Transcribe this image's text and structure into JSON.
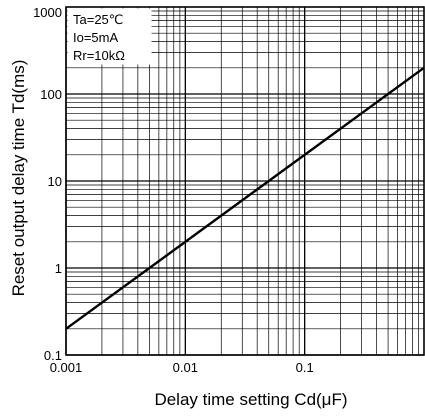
{
  "chart_data": {
    "type": "line",
    "xlabel": "Delay time setting Cd(μF)",
    "ylabel": "Reset output delay time Td(ms)",
    "xscale": "log",
    "yscale": "log",
    "xlim": [
      0.001,
      1
    ],
    "ylim": [
      0.1,
      1000
    ],
    "x_ticks": [
      {
        "value": 0.001,
        "label": "0.001"
      },
      {
        "value": 0.01,
        "label": "0.01"
      },
      {
        "value": 0.1,
        "label": "0.1"
      }
    ],
    "y_ticks": [
      {
        "value": 0.1,
        "label": "0.1"
      },
      {
        "value": 1,
        "label": "1"
      },
      {
        "value": 10,
        "label": "10"
      },
      {
        "value": 100,
        "label": "100"
      },
      {
        "value": 1000,
        "label": "1000"
      }
    ],
    "grid": true,
    "annotations": [
      "Ta=25℃",
      "Io=5mA",
      "Rr=10kΩ"
    ],
    "series": [
      {
        "x": [
          0.001,
          1
        ],
        "y": [
          0.2,
          200
        ]
      }
    ]
  }
}
